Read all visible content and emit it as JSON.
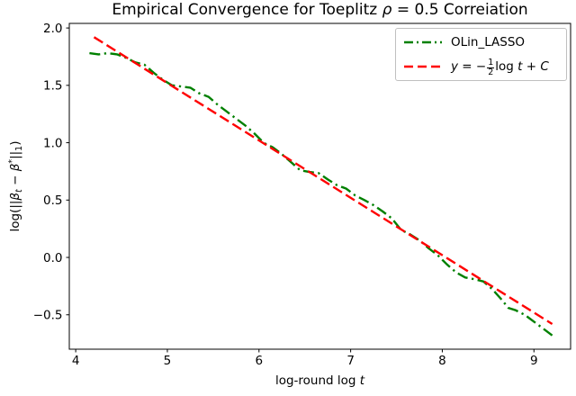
{
  "chart_data": {
    "type": "line",
    "title": "Empirical Convergence for Toeplitz ρ = 0.5 Correiation",
    "title_parts": {
      "pre": "Empirical Convergence for Toeplitz ",
      "rho": "ρ",
      "post": " = 0.5 Correiation"
    },
    "xlabel": {
      "text": "log-round log t",
      "plain": "log-round log ",
      "var": "t"
    },
    "ylabel": {
      "text": "log(||βt − β*||1)",
      "p1": "log(||",
      "beta1": "β",
      "sub_t": "t",
      "minus": " − ",
      "beta2": "β",
      "sup_star": "*",
      "p2": "||",
      "sub_1": "1",
      "p3": ")"
    },
    "axes": {
      "xlim": [
        3.93,
        9.4
      ],
      "ylim": [
        -0.8,
        2.04
      ],
      "color": "#000000",
      "grid": false,
      "x_ticks": {
        "values": [
          4,
          5,
          6,
          7,
          8,
          9
        ],
        "labels": [
          "4",
          "5",
          "6",
          "7",
          "8",
          "9"
        ]
      },
      "y_ticks": {
        "values": [
          2.0,
          1.5,
          1.0,
          0.5,
          0.0,
          -0.5
        ],
        "labels": [
          "2.0",
          "1.5",
          "1.0",
          "0.5",
          "0.0",
          "−0.5"
        ]
      }
    },
    "legend_position": "upper right",
    "series": [
      {
        "id": "olin-lasso",
        "name": "OLin_LASSO",
        "color": "#008000",
        "style": "dashdot",
        "x": [
          4.15,
          4.25,
          4.35,
          4.45,
          4.55,
          4.65,
          4.75,
          4.85,
          4.95,
          5.05,
          5.15,
          5.25,
          5.35,
          5.45,
          5.55,
          5.65,
          5.75,
          5.85,
          5.95,
          6.05,
          6.15,
          6.25,
          6.35,
          6.45,
          6.55,
          6.65,
          6.75,
          6.85,
          6.95,
          7.05,
          7.15,
          7.25,
          7.35,
          7.45,
          7.55,
          7.65,
          7.75,
          7.85,
          7.95,
          8.05,
          8.15,
          8.25,
          8.35,
          8.45,
          8.55,
          8.65,
          8.72,
          8.8,
          8.9,
          9.0,
          9.1,
          9.2
        ],
        "y": [
          1.78,
          1.77,
          1.78,
          1.77,
          1.74,
          1.7,
          1.68,
          1.61,
          1.55,
          1.5,
          1.49,
          1.48,
          1.43,
          1.4,
          1.33,
          1.27,
          1.21,
          1.15,
          1.08,
          1.0,
          0.96,
          0.9,
          0.83,
          0.76,
          0.745,
          0.735,
          0.68,
          0.63,
          0.6,
          0.54,
          0.5,
          0.455,
          0.4,
          0.34,
          0.24,
          0.2,
          0.15,
          0.08,
          0.02,
          -0.06,
          -0.13,
          -0.175,
          -0.19,
          -0.21,
          -0.28,
          -0.37,
          -0.44,
          -0.46,
          -0.5,
          -0.56,
          -0.62,
          -0.68
        ]
      },
      {
        "id": "reference-line",
        "name": "y = −(1/2) log t + C",
        "color": "#ff0000",
        "style": "dashed",
        "x": [
          4.2,
          9.2
        ],
        "y": [
          1.92,
          -0.58
        ]
      }
    ],
    "legend": {
      "entry1_label": "OLin_LASSO",
      "entry2": {
        "y": "y",
        "eq": " = −",
        "num": "1",
        "den": "2",
        "log": "log ",
        "t": "t",
        "plus": " + ",
        "c": "C"
      }
    }
  }
}
